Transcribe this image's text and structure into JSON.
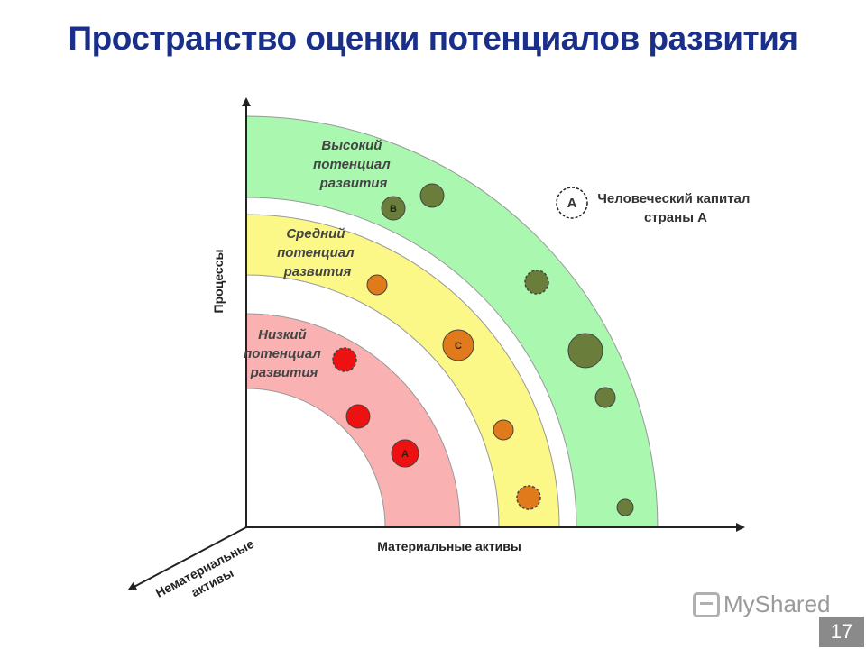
{
  "title": "Пространство оценки потенциалов развития",
  "zones": {
    "high": {
      "label_lines": [
        "Высокий",
        "потенциал",
        "развития"
      ],
      "color": "#aaf7b0"
    },
    "medium": {
      "label_lines": [
        "Средний",
        "потенциал",
        "развития"
      ],
      "color": "#fbf887"
    },
    "low": {
      "label_lines": [
        "Низкий",
        "потенциал",
        "развития"
      ],
      "color": "#f9b1b1"
    }
  },
  "axes": {
    "x_label": "Материальные активы",
    "y_label": "Процессы",
    "z_label_lines": [
      "Нематериальные",
      "активы"
    ]
  },
  "legend": {
    "letter": "A",
    "text_lines": [
      "Человеческий капитал",
      "страны А"
    ]
  },
  "dots": [
    {
      "zone": "high",
      "letter": "B",
      "color": "#6b7d3a",
      "dashed": false
    },
    {
      "zone": "high",
      "letter": "",
      "color": "#6b7d3a",
      "dashed": false
    },
    {
      "zone": "high",
      "letter": "",
      "color": "#6b7d3a",
      "dashed": true
    },
    {
      "zone": "high",
      "letter": "",
      "color": "#6b7d3a",
      "dashed": false
    },
    {
      "zone": "high",
      "letter": "",
      "color": "#6b7d3a",
      "dashed": false
    },
    {
      "zone": "high",
      "letter": "",
      "color": "#6b7d3a",
      "dashed": false
    },
    {
      "zone": "medium",
      "letter": "",
      "color": "#e07a1a",
      "dashed": false
    },
    {
      "zone": "medium",
      "letter": "C",
      "color": "#e07a1a",
      "dashed": false
    },
    {
      "zone": "medium",
      "letter": "",
      "color": "#e07a1a",
      "dashed": false
    },
    {
      "zone": "medium",
      "letter": "",
      "color": "#e07a1a",
      "dashed": true
    },
    {
      "zone": "low",
      "letter": "",
      "color": "#ee1111",
      "dashed": true
    },
    {
      "zone": "low",
      "letter": "",
      "color": "#ee1111",
      "dashed": false
    },
    {
      "zone": "low",
      "letter": "A",
      "color": "#ee1111",
      "dashed": false
    }
  ],
  "watermark": "MyShared",
  "page_number": "17"
}
